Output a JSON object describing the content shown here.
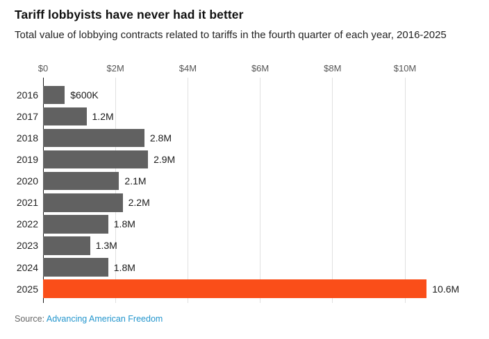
{
  "header": {
    "title": "Tariff lobbyists have never had it better",
    "subtitle": "Total value of lobbying contracts related to tariffs in the fourth quarter of each year, 2016-2025"
  },
  "source": {
    "prefix": "Source: ",
    "link_text": "Advancing American Freedom"
  },
  "colors": {
    "bar_default": "#616161",
    "bar_highlight": "#fa4e19",
    "zero_axis_line": "#1a1a1a",
    "gridline": "#e0e0e0",
    "link_blue": "#2496cd",
    "title_text": "#111111",
    "body_text": "#222222",
    "axis_text": "#555555"
  },
  "chart_data": {
    "type": "bar",
    "orientation": "horizontal",
    "title": "Tariff lobbyists have never had it better",
    "subtitle": "Total value of lobbying contracts related to tariffs in the fourth quarter of each year, 2016-2025",
    "categories": [
      "2016",
      "2017",
      "2018",
      "2019",
      "2020",
      "2021",
      "2022",
      "2023",
      "2024",
      "2025"
    ],
    "values_millions": [
      0.6,
      1.2,
      2.8,
      2.9,
      2.1,
      2.2,
      1.8,
      1.3,
      1.8,
      10.6
    ],
    "value_labels": [
      "$600K",
      "1.2M",
      "2.8M",
      "2.9M",
      "2.1M",
      "2.2M",
      "1.8M",
      "1.3M",
      "1.8M",
      "10.6M"
    ],
    "highlight_category": "2025",
    "highlight_index": 9,
    "x_axis": {
      "tick_labels": [
        "$0",
        "$2M",
        "$4M",
        "$6M",
        "$8M",
        "$10M"
      ],
      "tick_values_millions": [
        0,
        2,
        4,
        6,
        8,
        10
      ],
      "range_millions": [
        0,
        10.6
      ],
      "gridlines": true
    },
    "legend": null
  }
}
